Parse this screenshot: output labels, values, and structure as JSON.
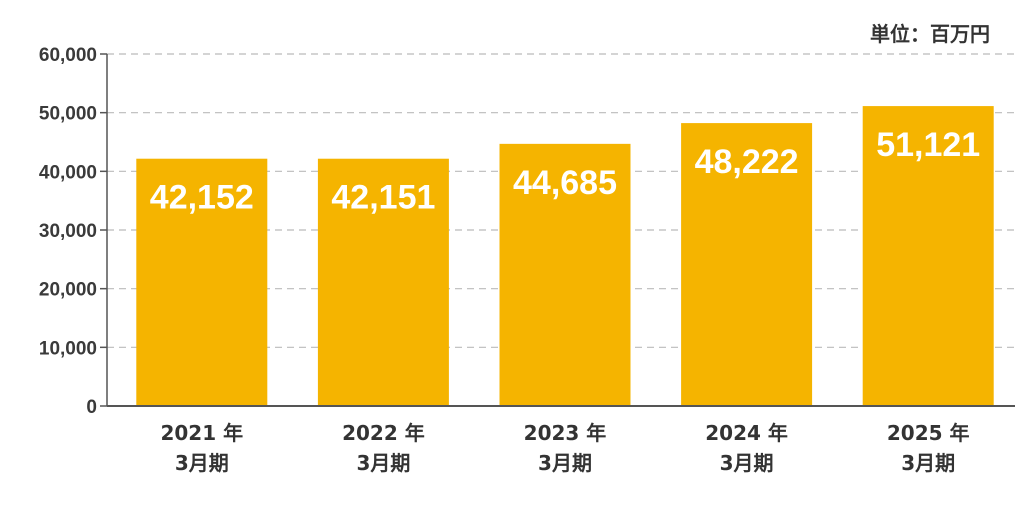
{
  "unit_label": "単位：百万円",
  "chart_data": {
    "type": "bar",
    "categories": [
      [
        "2021 年",
        "3月期"
      ],
      [
        "2022 年",
        "3月期"
      ],
      [
        "2023 年",
        "3月期"
      ],
      [
        "2024 年",
        "3月期"
      ],
      [
        "2025 年",
        "3月期"
      ]
    ],
    "values": [
      42152,
      42151,
      44685,
      48222,
      51121
    ],
    "value_labels": [
      "42,152",
      "42,151",
      "44,685",
      "48,222",
      "51,121"
    ],
    "ylim": [
      0,
      60000
    ],
    "yticks": [
      0,
      10000,
      20000,
      30000,
      40000,
      50000,
      60000
    ],
    "ytick_labels": [
      "0",
      "10,000",
      "20,000",
      "30,000",
      "40,000",
      "50,000",
      "60,000"
    ],
    "grid": true,
    "bar_color": "#F5B400",
    "axis_color": "#555555",
    "grid_color": "#bbbbbb"
  }
}
